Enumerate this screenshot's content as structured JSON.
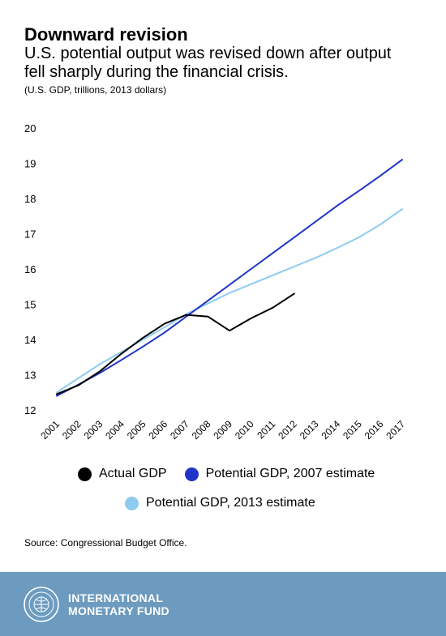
{
  "header": {
    "title": "Downward revision",
    "subtitle": "U.S. potential output was revised down after output fell sharply during the financial crisis.",
    "units": "(U.S. GDP, trillions, 2013 dollars)"
  },
  "chart_data": {
    "type": "line",
    "title": "Downward revision",
    "ylabel": "U.S. GDP, trillions, 2013 dollars",
    "xlabel": "",
    "categories": [
      "2001",
      "2002",
      "2003",
      "2004",
      "2005",
      "2006",
      "2007",
      "2008",
      "2009",
      "2010",
      "2011",
      "2012",
      "2013",
      "2014",
      "2015",
      "2016",
      "2017"
    ],
    "yticks": [
      12,
      13,
      14,
      15,
      16,
      17,
      18,
      19,
      20
    ],
    "ylim": [
      12,
      20
    ],
    "grid": false,
    "legend_position": "bottom",
    "series": [
      {
        "name": "Actual GDP",
        "color": "#000000",
        "values": [
          12.45,
          12.7,
          13.1,
          13.6,
          14.05,
          14.45,
          14.7,
          14.65,
          14.25,
          14.6,
          14.9,
          15.3,
          null,
          null,
          null,
          null,
          null
        ]
      },
      {
        "name": "Potential GDP, 2007 estimate",
        "color": "#1f34c9",
        "values": [
          12.4,
          12.72,
          13.05,
          13.42,
          13.8,
          14.2,
          14.65,
          15.1,
          15.55,
          16.0,
          16.45,
          16.9,
          17.35,
          17.8,
          18.22,
          18.65,
          19.1
        ]
      },
      {
        "name": "Potential GDP, 2013 estimate",
        "color": "#8dcbef",
        "values": [
          12.5,
          12.9,
          13.3,
          13.65,
          14.0,
          14.35,
          14.72,
          15.02,
          15.32,
          15.57,
          15.82,
          16.07,
          16.32,
          16.6,
          16.9,
          17.27,
          17.7
        ]
      }
    ]
  },
  "legend": {
    "items": [
      {
        "label": "Actual GDP",
        "color": "#000000"
      },
      {
        "label": "Potential GDP, 2007 estimate",
        "color": "#1f34c9"
      },
      {
        "label": "Potential GDP, 2013 estimate",
        "color": "#8dcbef"
      }
    ]
  },
  "source": "Source: Congressional Budget Office.",
  "footer": {
    "brand_line1": "INTERNATIONAL",
    "brand_line2": "MONETARY FUND",
    "background": "#6d9bbf",
    "seal_icon": "imf-seal-icon"
  }
}
